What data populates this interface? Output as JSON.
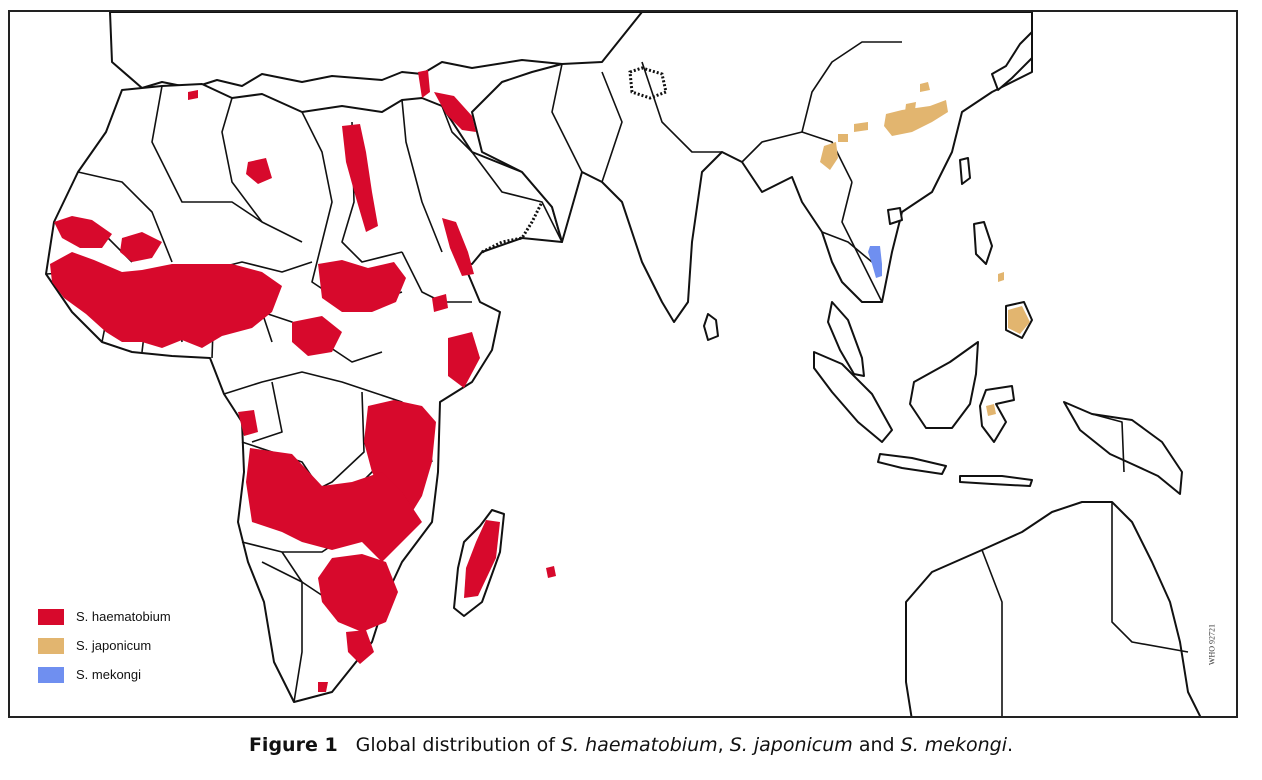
{
  "legend": {
    "items": [
      {
        "label": "S. haematobium",
        "color": "#d7092c"
      },
      {
        "label": "S. japonicum",
        "color": "#e2b56f"
      },
      {
        "label": "S. mekongi",
        "color": "#6f8ff0"
      }
    ]
  },
  "map_code": "WHO 92721",
  "caption": {
    "figure_label": "Figure 1",
    "text_before": "Global distribution of ",
    "species_1": "S. haematobium",
    "separator_1": ", ",
    "species_2": "S. japonicum",
    "separator_2": " and ",
    "species_3": "S. mekongi",
    "end": "."
  },
  "colors": {
    "haematobium": "#d7092c",
    "japonicum": "#e2b56f",
    "mekongi": "#6f8ff0",
    "border": "#111111"
  }
}
